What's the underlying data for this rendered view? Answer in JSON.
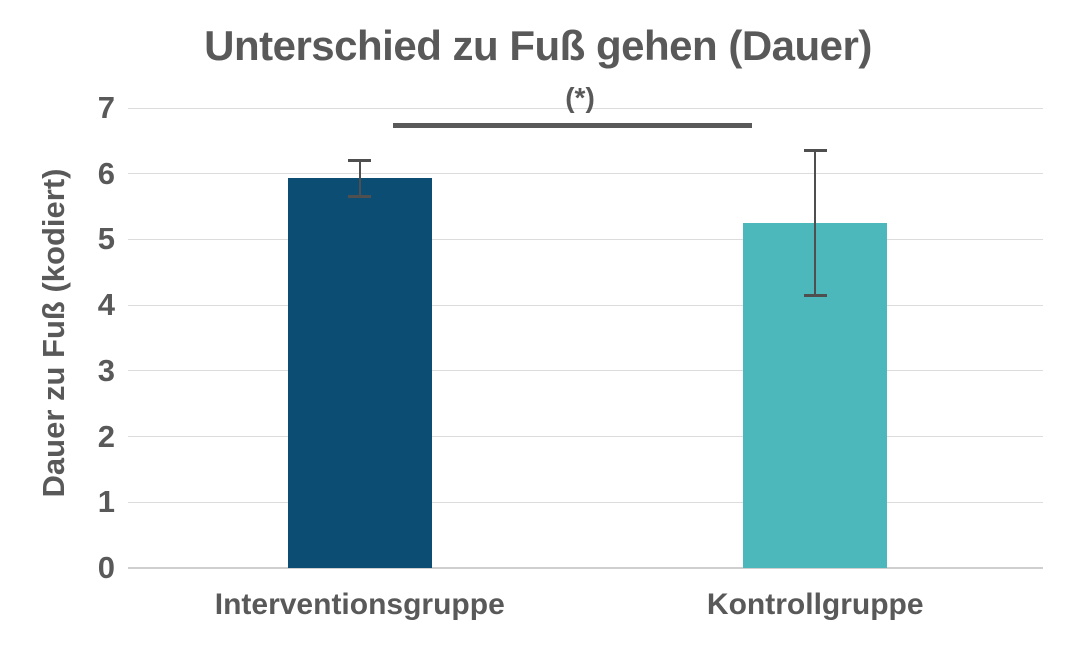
{
  "chart_data": {
    "type": "bar",
    "title": "Unterschied zu Fuß gehen (Dauer)",
    "ylabel": "Dauer zu Fuß (kodiert)",
    "xlabel": "",
    "categories": [
      "Interventionsgruppe",
      "Kontrollgruppe"
    ],
    "values": [
      5.93,
      5.25
    ],
    "error_bars": [
      0.3,
      1.13
    ],
    "bar_colors": [
      "#0b4d73",
      "#4db8bc"
    ],
    "ylim": [
      0,
      7
    ],
    "yticks": [
      0,
      1,
      2,
      3,
      4,
      5,
      6,
      7
    ],
    "grid": true,
    "legend": false,
    "significance": {
      "label": "(*)",
      "between": [
        "Interventionsgruppe",
        "Kontrollgruppe"
      ]
    },
    "colors": {
      "text": "#595959",
      "gridline": "#dcdcdc",
      "error_bar": "#4f4f4f",
      "significance_line": "#595959",
      "background": "#ffffff"
    }
  }
}
